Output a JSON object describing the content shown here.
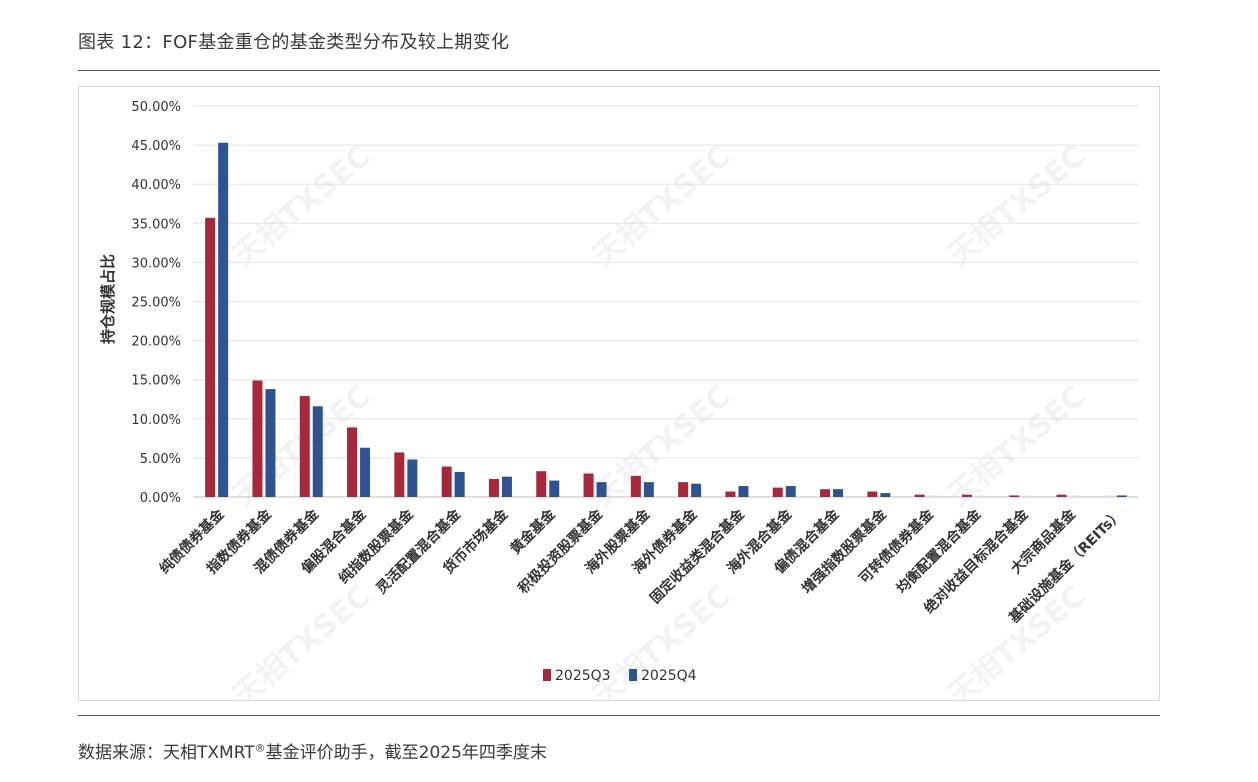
{
  "figure_title": "图表 12：FOF基金重仓的基金类型分布及较上期变化",
  "source": {
    "prefix": "数据来源：天相TXMRT",
    "sup": "®",
    "suffix": "基金评价助手，截至2025年四季度末"
  },
  "watermark": "天相TXSEC",
  "colors": {
    "q3": "#A8273A",
    "q4": "#2E5391",
    "grid": "#e3e3e3"
  },
  "chart_data": {
    "type": "bar",
    "ylabel": "持仓规模占比",
    "ylim": [
      0,
      50
    ],
    "ytick_step": 5,
    "ytick_labels": [
      "0.00%",
      "5.00%",
      "10.00%",
      "15.00%",
      "20.00%",
      "25.00%",
      "30.00%",
      "35.00%",
      "40.00%",
      "45.00%",
      "50.00%"
    ],
    "grid": true,
    "legend_position": "bottom",
    "categories": [
      "纯债债券基金",
      "指数债券基金",
      "混债债券基金",
      "偏股混合基金",
      "纯指数股票基金",
      "灵活配置混合基金",
      "货币市场基金",
      "黄金基金",
      "积极投资股票基金",
      "海外股票基金",
      "海外债券基金",
      "固定收益类混合基金",
      "海外混合基金",
      "偏债混合基金",
      "增强指数股票基金",
      "可转债债券基金",
      "均衡配置混合基金",
      "绝对收益目标混合基金",
      "大宗商品基金",
      "基础设施基金（REITs）"
    ],
    "series": [
      {
        "name": "2025Q3",
        "values": [
          35.7,
          14.9,
          12.9,
          8.9,
          5.7,
          3.9,
          2.3,
          3.3,
          3.0,
          2.7,
          1.9,
          0.7,
          1.2,
          1.0,
          0.7,
          0.3,
          0.3,
          0.2,
          0.3,
          0.0
        ]
      },
      {
        "name": "2025Q4",
        "values": [
          45.3,
          13.8,
          11.6,
          6.3,
          4.8,
          3.2,
          2.6,
          2.1,
          1.9,
          1.9,
          1.7,
          1.4,
          1.4,
          1.0,
          0.5,
          0.15,
          0.15,
          0.1,
          0.15,
          0.2
        ]
      }
    ]
  }
}
